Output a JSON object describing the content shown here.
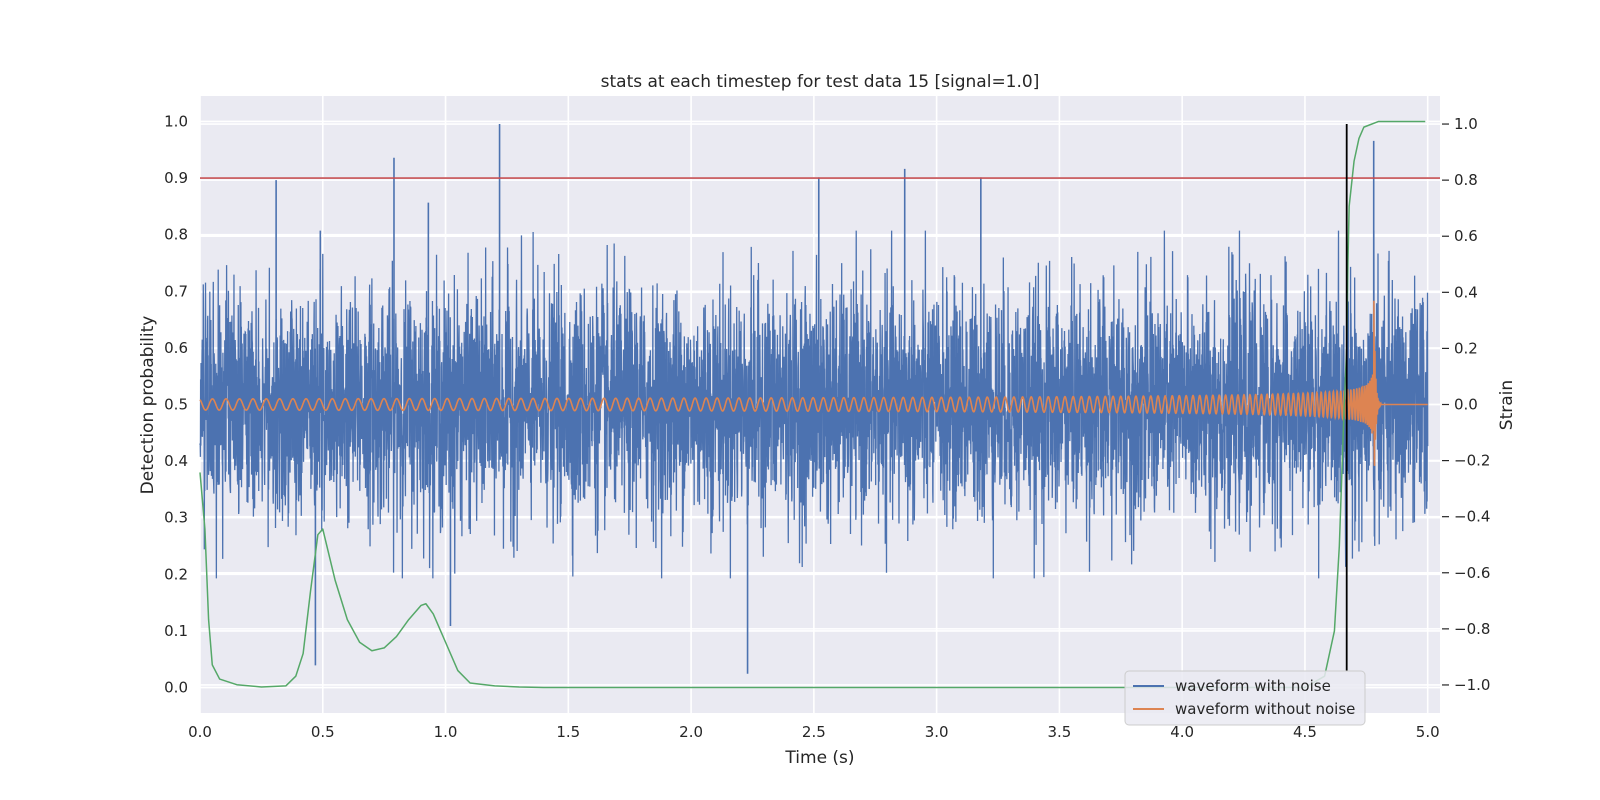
{
  "chart_data": {
    "type": "line",
    "title": "stats at each timestep for test data 15 [signal=1.0]",
    "xlabel": "Time (s)",
    "ylabel_left": "Detection probability",
    "ylabel_right": "Strain",
    "xlim": [
      0.0,
      5.05
    ],
    "ylim_left": [
      -0.045,
      1.045
    ],
    "ylim_right": [
      -1.1,
      1.1
    ],
    "x_ticks": [
      "0.0",
      "0.5",
      "1.0",
      "1.5",
      "2.0",
      "2.5",
      "3.0",
      "3.5",
      "4.0",
      "4.5",
      "5.0"
    ],
    "y_left_ticks": [
      "0.0",
      "0.1",
      "0.2",
      "0.3",
      "0.4",
      "0.5",
      "0.6",
      "0.7",
      "0.8",
      "0.9",
      "1.0"
    ],
    "y_right_ticks": [
      "−1.0",
      "−0.8",
      "−0.6",
      "−0.4",
      "−0.2",
      "0.0",
      "0.2",
      "0.4",
      "0.6",
      "0.8",
      "1.0"
    ],
    "grid": true,
    "legend": {
      "position": "lower-right",
      "entries": [
        "waveform with noise",
        "waveform without noise"
      ]
    },
    "threshold": {
      "y": 0.9,
      "color": "#c44e52"
    },
    "marker_line": {
      "x": 4.67,
      "ymin": -0.95,
      "ymax": 1.0,
      "color": "#000000"
    },
    "series": [
      {
        "name": "waveform with noise",
        "axis": "right",
        "color": "#4c72b0",
        "summary": {
          "noise_std": 0.2,
          "typical_range": [
            -0.6,
            0.6
          ]
        },
        "spikes": [
          {
            "x": 0.31,
            "y": 0.8
          },
          {
            "x": 0.47,
            "y": -0.93
          },
          {
            "x": 0.49,
            "y": 0.62
          },
          {
            "x": 0.79,
            "y": 0.88
          },
          {
            "x": 0.93,
            "y": 0.72
          },
          {
            "x": 1.02,
            "y": -0.79
          },
          {
            "x": 1.22,
            "y": 1.0
          },
          {
            "x": 2.23,
            "y": -0.96
          },
          {
            "x": 2.52,
            "y": 0.81
          },
          {
            "x": 2.87,
            "y": 0.84
          },
          {
            "x": 3.18,
            "y": 0.81
          },
          {
            "x": 4.78,
            "y": 0.94
          }
        ]
      },
      {
        "name": "waveform without noise",
        "axis": "right",
        "color": "#dd8452",
        "summary": {
          "amp_start": 0.02,
          "peak_amp": 0.55,
          "freq_start_hz": 18,
          "merger_time": 4.78,
          "ringdown_end": 4.8
        }
      },
      {
        "name": "detection probability",
        "axis": "left",
        "color": "#55a868",
        "x": [
          0.0,
          0.02,
          0.035,
          0.05,
          0.08,
          0.15,
          0.25,
          0.35,
          0.39,
          0.42,
          0.45,
          0.48,
          0.5,
          0.55,
          0.6,
          0.65,
          0.7,
          0.75,
          0.8,
          0.85,
          0.9,
          0.92,
          0.95,
          1.0,
          1.05,
          1.1,
          1.2,
          1.3,
          1.4,
          2.0,
          3.0,
          3.5,
          4.0,
          4.5,
          4.58,
          4.62,
          4.64,
          4.66,
          4.67,
          4.675,
          4.68,
          4.7,
          4.72,
          4.74,
          4.8,
          4.99
        ],
        "values": [
          0.38,
          0.28,
          0.12,
          0.04,
          0.015,
          0.005,
          0.001,
          0.003,
          0.02,
          0.06,
          0.17,
          0.27,
          0.28,
          0.19,
          0.12,
          0.08,
          0.065,
          0.07,
          0.09,
          0.12,
          0.145,
          0.148,
          0.13,
          0.08,
          0.03,
          0.008,
          0.003,
          0.001,
          0.0,
          0.0,
          0.0,
          0.0,
          0.0,
          0.0,
          0.02,
          0.1,
          0.25,
          0.5,
          0.6,
          0.75,
          0.85,
          0.93,
          0.97,
          0.99,
          1.0,
          1.0
        ]
      }
    ]
  }
}
